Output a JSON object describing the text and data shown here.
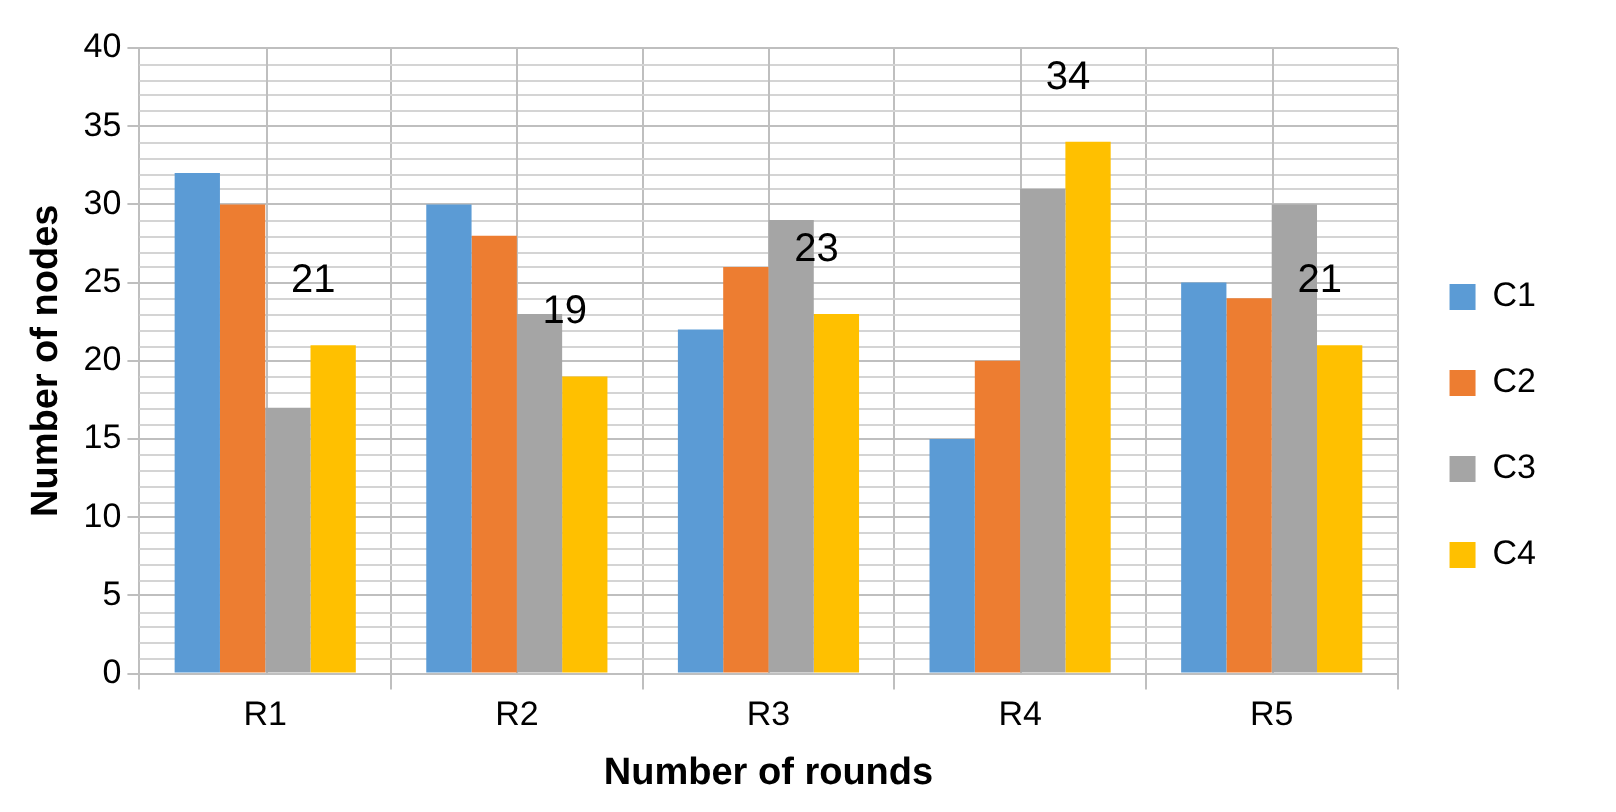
{
  "chart_data": {
    "type": "bar",
    "xlabel": "Number of rounds",
    "ylabel": "Number of nodes",
    "categories": [
      "R1",
      "R2",
      "R3",
      "R4",
      "R5"
    ],
    "series": [
      {
        "name": "C1",
        "color": "#5b9bd5",
        "values": [
          32,
          30,
          22,
          15,
          25
        ]
      },
      {
        "name": "C2",
        "color": "#ed7d31",
        "values": [
          30,
          28,
          26,
          20,
          24
        ]
      },
      {
        "name": "C3",
        "color": "#a5a5a5",
        "values": [
          17,
          23,
          29,
          31,
          30
        ]
      },
      {
        "name": "C4",
        "color": "#ffc000",
        "values": [
          21,
          19,
          23,
          34,
          21
        ],
        "value_labels": [
          "21",
          "19",
          "23",
          "34",
          "21"
        ]
      }
    ],
    "ylim": [
      0,
      40
    ],
    "yticks": [
      0,
      5,
      10,
      15,
      20,
      25,
      30,
      35,
      40
    ],
    "grid": true,
    "legend": "right"
  }
}
